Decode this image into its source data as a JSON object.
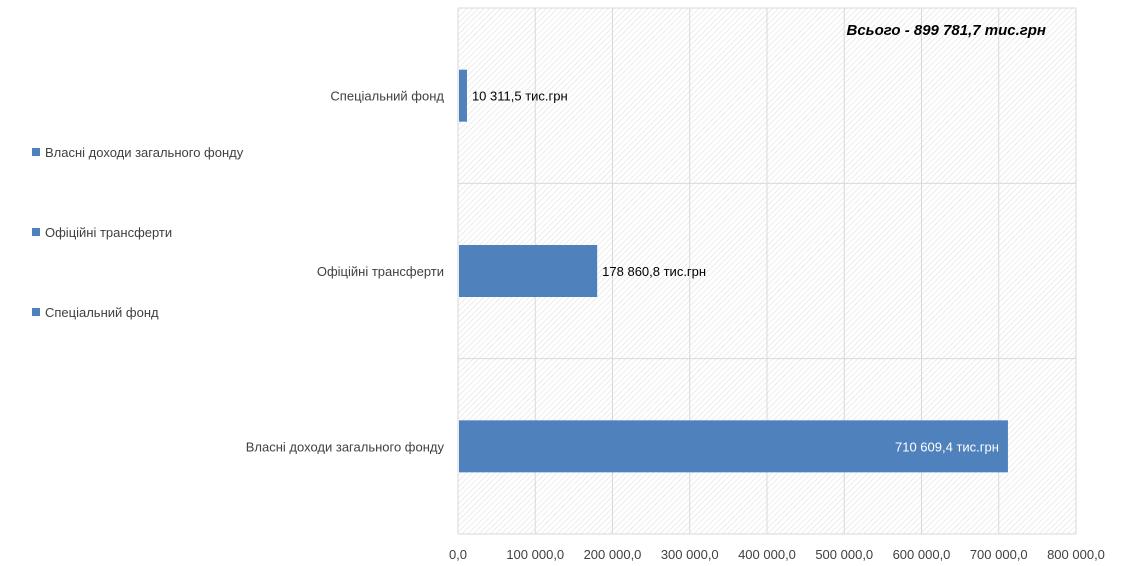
{
  "chart_data": {
    "type": "bar",
    "orientation": "horizontal",
    "categories": [
      "Спеціальний фонд",
      "Офіційні трансферти",
      "Власні доходи загального фонду"
    ],
    "values": [
      10311.5,
      178860.8,
      710609.4
    ],
    "data_labels": [
      "10 311,5 тис.грн",
      "178 860,8 тис.грн",
      "710 609,4 тис.грн"
    ],
    "xlim": [
      0,
      800000
    ],
    "x_ticks": [
      "0,0",
      "100 000,0",
      "200 000,0",
      "300 000,0",
      "400 000,0",
      "500 000,0",
      "600 000,0",
      "700 000,0",
      "800 000,0"
    ],
    "annotation": "Всього - 899 781,7 тис.грн",
    "legend": [
      "Власні доходи загального фонду",
      "Офіційні трансферти",
      "Спеціальний фонд"
    ],
    "legend_position": "left",
    "grid": true,
    "bar_color": "#4f81bd"
  }
}
